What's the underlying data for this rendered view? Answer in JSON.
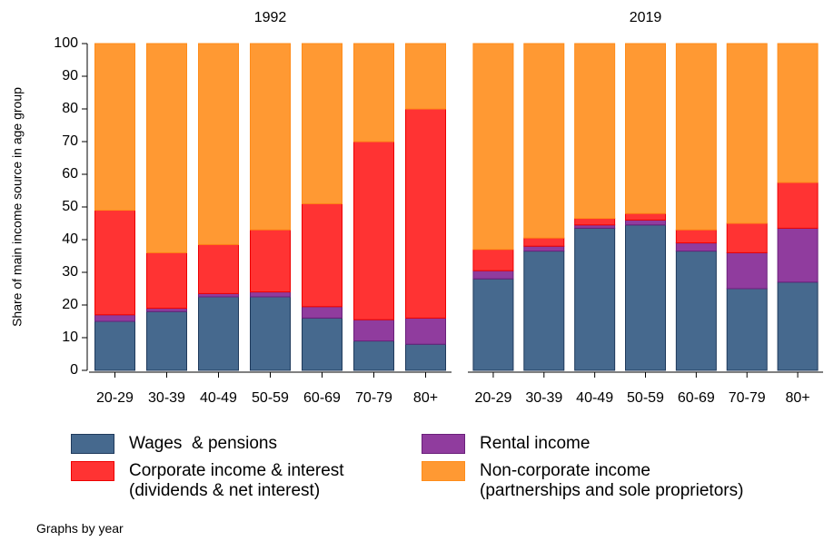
{
  "chart_data": [
    {
      "type": "bar",
      "stacked": true,
      "title": "1992",
      "ylabel": "Share of main income source in age group",
      "ylim": [
        0,
        100
      ],
      "yticks": [
        0,
        10,
        20,
        30,
        40,
        50,
        60,
        70,
        80,
        90,
        100
      ],
      "categories": [
        "20-29",
        "30-39",
        "40-49",
        "50-59",
        "60-69",
        "70-79",
        "80+"
      ],
      "series": [
        {
          "name": "Wages  & pensions",
          "color": "#46698e",
          "values": [
            15,
            18,
            22.5,
            22.5,
            16,
            9,
            8
          ]
        },
        {
          "name": "Rental income",
          "color": "#903c9e",
          "values": [
            2,
            1,
            1,
            1.5,
            3.5,
            6.5,
            8
          ]
        },
        {
          "name": "Corporate income & interest\n(dividends & net interest)",
          "color": "#ff3333",
          "values": [
            32,
            17,
            15,
            19,
            31.5,
            54.5,
            64
          ]
        },
        {
          "name": "Non-corporate income\n(partnerships and sole proprietors)",
          "color": "#ff9933",
          "values": [
            51,
            64,
            61.5,
            57,
            49,
            30,
            20
          ]
        }
      ]
    },
    {
      "type": "bar",
      "stacked": true,
      "title": "2019",
      "ylim": [
        0,
        100
      ],
      "categories": [
        "20-29",
        "30-39",
        "40-49",
        "50-59",
        "60-69",
        "70-79",
        "80+"
      ],
      "series": [
        {
          "color": "#46698e",
          "values": [
            28,
            36.5,
            43.5,
            44.5,
            36.5,
            25,
            27
          ]
        },
        {
          "color": "#903c9e",
          "values": [
            2.5,
            1.5,
            1,
            1.5,
            2.5,
            11,
            16.5
          ]
        },
        {
          "color": "#ff3333",
          "values": [
            6.5,
            2.5,
            2,
            2,
            4,
            9,
            14
          ]
        },
        {
          "color": "#ff9933",
          "values": [
            63,
            59.5,
            53.5,
            52,
            57,
            55,
            42.5
          ]
        }
      ]
    }
  ],
  "note": "Graphs by year"
}
